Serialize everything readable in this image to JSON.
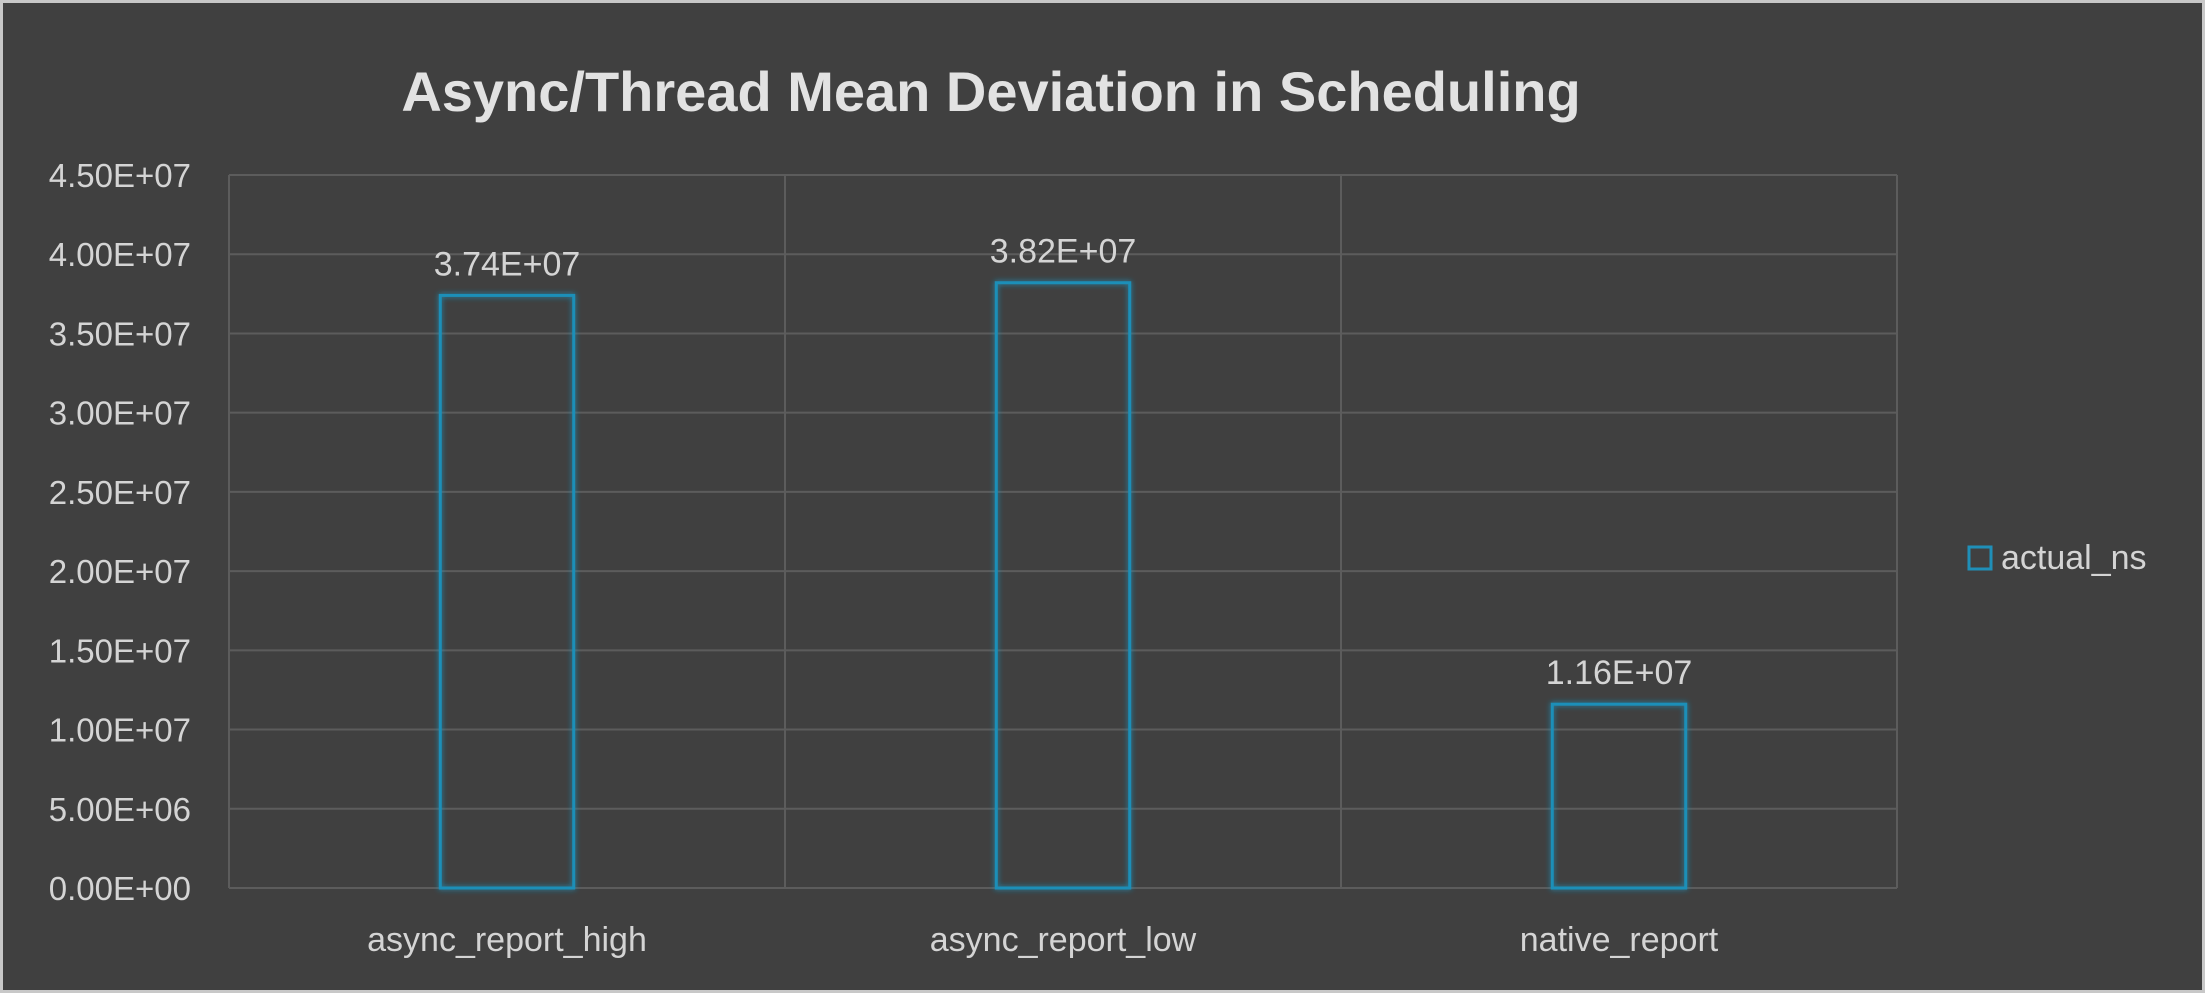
{
  "chart_data": {
    "type": "bar",
    "title": "Async/Thread Mean Deviation in Scheduling",
    "categories": [
      "async_report_high",
      "async_report_low",
      "native_report"
    ],
    "series": [
      {
        "name": "actual_ns",
        "values": [
          37400000,
          38200000,
          11600000
        ],
        "data_labels": [
          "3.74E+07",
          "3.82E+07",
          "1.16E+07"
        ]
      }
    ],
    "ylim": [
      0,
      45000000
    ],
    "yticks": [
      0,
      5000000,
      10000000,
      15000000,
      20000000,
      25000000,
      30000000,
      35000000,
      40000000,
      45000000
    ],
    "ytick_labels": [
      "0.00E+00",
      "5.00E+06",
      "1.00E+07",
      "1.50E+07",
      "2.00E+07",
      "2.50E+07",
      "3.00E+07",
      "3.50E+07",
      "4.00E+07",
      "4.50E+07"
    ],
    "grid": true,
    "legend_position": "right",
    "colors": {
      "background": "#404040",
      "bar_outline": "#1f8fb8",
      "text": "#d4d4d4",
      "grid": "#5c5c5c"
    }
  }
}
